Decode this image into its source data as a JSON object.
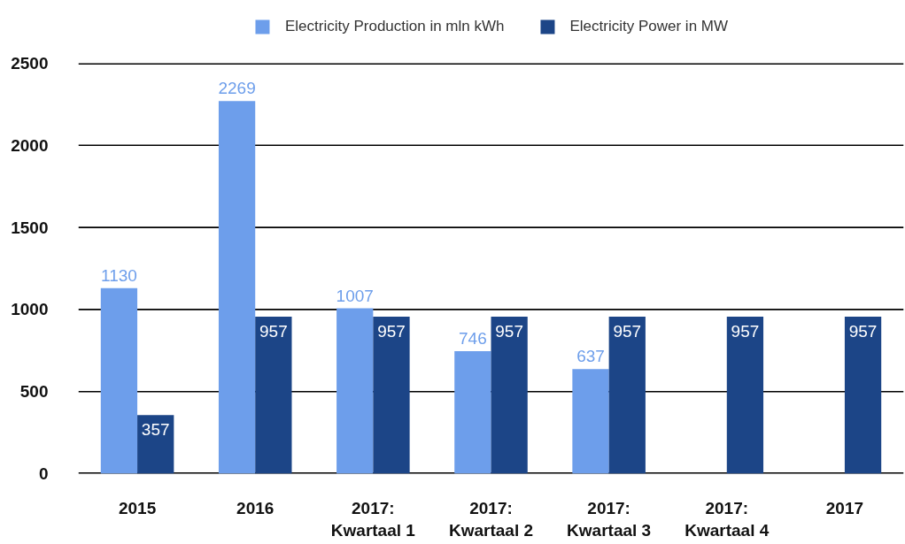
{
  "chart_data": {
    "type": "bar",
    "categories": [
      "2015",
      "2016",
      "2017: Kwartaal 1",
      "2017: Kwartaal 2",
      "2017: Kwartaal 3",
      "2017: Kwartaal 4",
      "2017"
    ],
    "series": [
      {
        "name": "Electricity Production in mln kWh",
        "color": "#6d9eeb",
        "values": [
          1130,
          2269,
          1007,
          746,
          637,
          null,
          null
        ]
      },
      {
        "name": "Electricity Power in MW",
        "color": "#1c4587",
        "values": [
          357,
          957,
          957,
          957,
          957,
          957,
          957
        ]
      }
    ],
    "ylim": [
      0,
      2500
    ],
    "yticks": [
      0,
      500,
      1000,
      1500,
      2000,
      2500
    ],
    "grid": "y",
    "legend": "top",
    "data_labels": true
  }
}
